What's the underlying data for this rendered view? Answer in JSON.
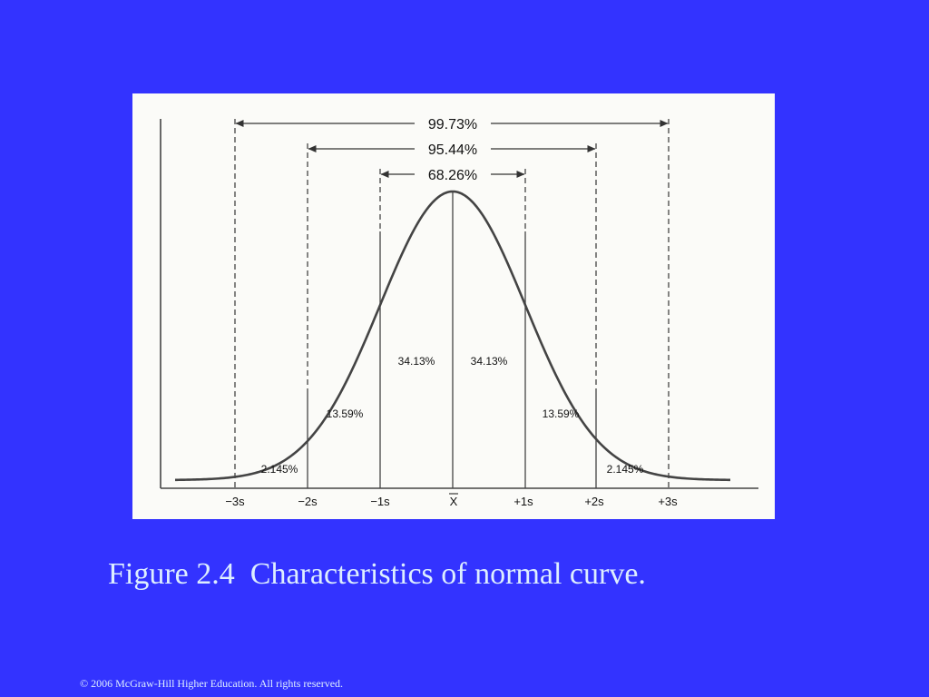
{
  "figure": {
    "range_labels": {
      "three_s": "99.73%",
      "two_s": "95.44%",
      "one_s": "68.26%"
    },
    "area_labels": {
      "center_left": "34.13%",
      "center_right": "34.13%",
      "mid_left": "13.59%",
      "mid_right": "13.59%",
      "tail_left": "2.145%",
      "tail_right": "2.145%"
    },
    "axis_ticks": [
      "−3s",
      "−2s",
      "−1s",
      "X",
      "+1s",
      "+2s",
      "+3s"
    ],
    "line_color": "#444444",
    "background_color": "#fbfbf8"
  },
  "caption": "Figure 2.4  Characteristics of normal curve.",
  "copyright": "© 2006 McGraw-Hill Higher Education. All rights reserved.",
  "colors": {
    "slide_background": "#3333ff",
    "text": "#ddeeff"
  }
}
